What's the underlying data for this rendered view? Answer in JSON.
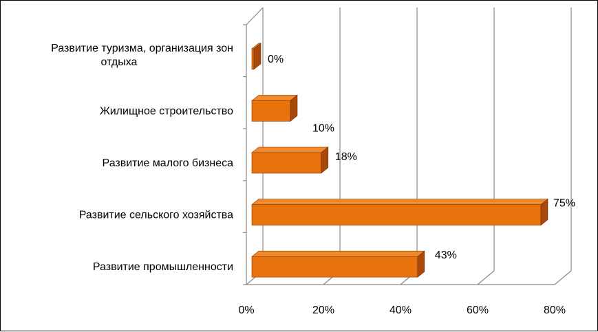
{
  "chart_data": {
    "type": "bar",
    "orientation": "horizontal",
    "categories": [
      [
        "Развитие туризма, организация зон",
        "отдыха"
      ],
      [
        "Жилищное строительство"
      ],
      [
        "Развитие малого бизнеса"
      ],
      [
        "Развитие сельского хозяйства"
      ],
      [
        "Развитие промышленности"
      ]
    ],
    "values": [
      0,
      10,
      18,
      75,
      43
    ],
    "data_labels": [
      "0%",
      "10%",
      "18%",
      "75%",
      "43%"
    ],
    "x_ticks": [
      "0%",
      "20%",
      "40%",
      "60%",
      "80%"
    ],
    "xlim": [
      0,
      80
    ],
    "grid": true,
    "colors": {
      "bar_front": "#e8720c",
      "bar_top": "#f08a2c",
      "bar_side": "#a8480a",
      "grid": "#888888",
      "axis": "#888888"
    }
  }
}
